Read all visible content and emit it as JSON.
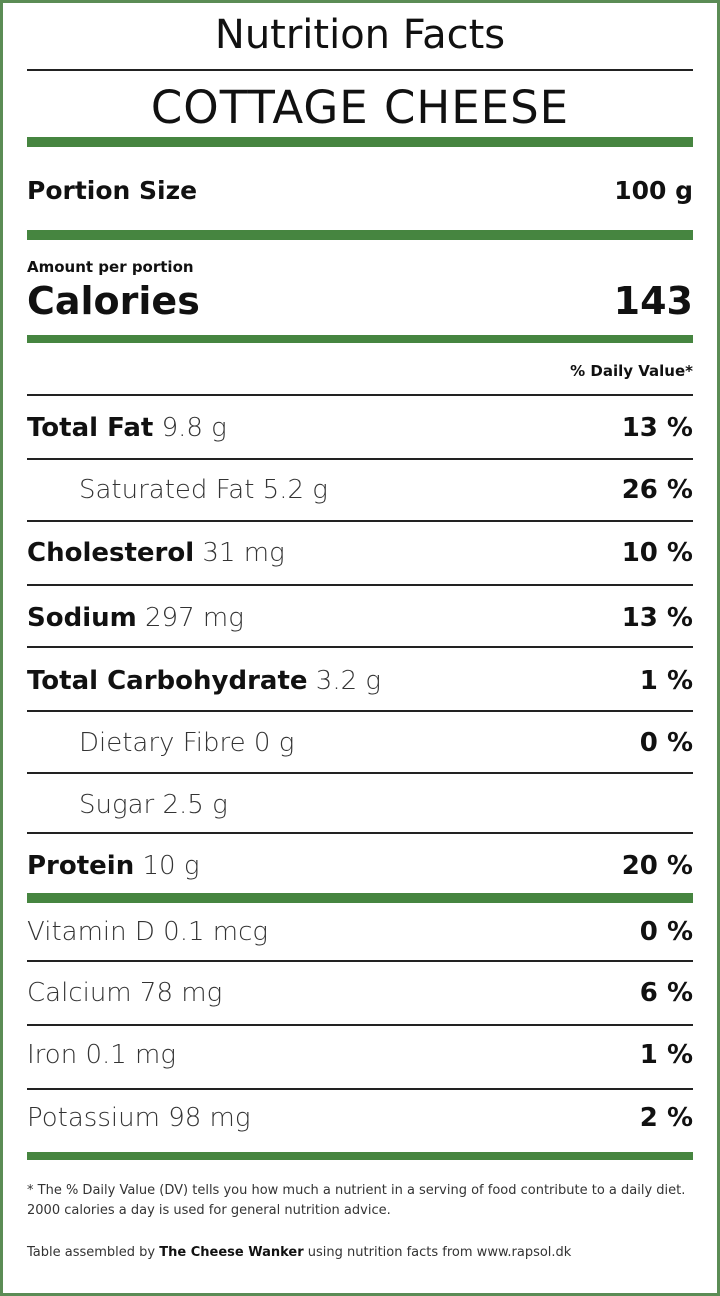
{
  "header": {
    "title": "Nutrition Facts",
    "product": "COTTAGE CHEESE"
  },
  "portion": {
    "label": "Portion Size",
    "value": "100 g"
  },
  "calories": {
    "amount_label": "Amount per portion",
    "label": "Calories",
    "value": "143"
  },
  "daily_value_header": "% Daily Value*",
  "nutrients": [
    {
      "name": "Total Fat",
      "amount": "9.8 g",
      "dv": "13 %",
      "bold": true,
      "indent": false
    },
    {
      "name": "Saturated Fat",
      "amount": "5.2 g",
      "dv": "26 %",
      "bold": false,
      "indent": true
    },
    {
      "name": "Cholesterol",
      "amount": "31 mg",
      "dv": "10 %",
      "bold": true,
      "indent": false
    },
    {
      "name": "Sodium",
      "amount": "297 mg",
      "dv": "13 %",
      "bold": true,
      "indent": false
    },
    {
      "name": "Total Carbohydrate",
      "amount": "3.2 g",
      "dv": "1 %",
      "bold": true,
      "indent": false
    },
    {
      "name": "Dietary Fibre",
      "amount": "0 g",
      "dv": "0 %",
      "bold": false,
      "indent": true
    },
    {
      "name": "Sugar",
      "amount": "2.5 g",
      "dv": "",
      "bold": false,
      "indent": true
    },
    {
      "name": "Protein",
      "amount": "10 g",
      "dv": "20 %",
      "bold": true,
      "indent": false
    }
  ],
  "minerals": [
    {
      "name": "Vitamin D",
      "amount": "0.1 mcg",
      "dv": "0 %"
    },
    {
      "name": "Calcium",
      "amount": "78 mg",
      "dv": "6 %"
    },
    {
      "name": "Iron",
      "amount": "0.1 mg",
      "dv": "1 %"
    },
    {
      "name": "Potassium",
      "amount": "98 mg",
      "dv": "2 %"
    }
  ],
  "footnote": "* The % Daily Value (DV) tells you how much a nutrient in a serving of food contribute to a daily diet. 2000 calories a day is used for general nutrition advice.",
  "credit": {
    "prefix": "Table assembled by ",
    "author": "The Cheese Wanker",
    "suffix": " using nutrition facts from www.rapsol.dk"
  },
  "colors": {
    "accent": "#468540",
    "border": "#5b8c55"
  }
}
